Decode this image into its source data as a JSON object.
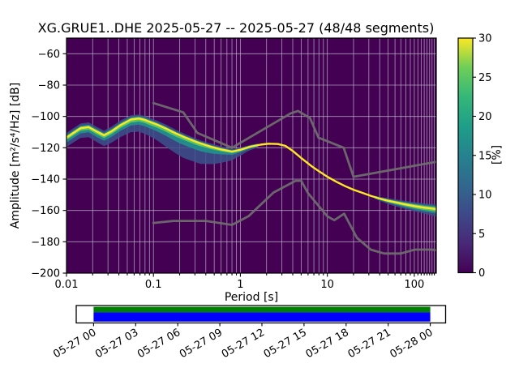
{
  "title": "XG.GRUE1..DHE   2025-05-27 -- 2025-05-27  (48/48 segments)",
  "axes": {
    "xlabel": "Period [s]",
    "ylabel": "Amplitude [m²/s⁴/Hz] [dB]",
    "x_major_ticks": [
      {
        "value": 0.01,
        "label": "0.01"
      },
      {
        "value": 0.1,
        "label": "0.1"
      },
      {
        "value": 1,
        "label": "1"
      },
      {
        "value": 10,
        "label": "10"
      },
      {
        "value": 100,
        "label": "100"
      }
    ],
    "y_ticks": [
      {
        "value": -60,
        "label": "−60"
      },
      {
        "value": -80,
        "label": "−80"
      },
      {
        "value": -100,
        "label": "−100"
      },
      {
        "value": -120,
        "label": "−120"
      },
      {
        "value": -140,
        "label": "−140"
      },
      {
        "value": -160,
        "label": "−160"
      },
      {
        "value": -180,
        "label": "−180"
      },
      {
        "value": -200,
        "label": "−200"
      }
    ]
  },
  "colorbar": {
    "label": "[%]",
    "ticks": [
      0,
      5,
      10,
      15,
      20,
      25,
      30
    ],
    "min": 0,
    "max": 30,
    "gradient": [
      [
        0,
        "#440154"
      ],
      [
        0.125,
        "#482878"
      ],
      [
        0.25,
        "#3e4989"
      ],
      [
        0.375,
        "#31688e"
      ],
      [
        0.5,
        "#26828e"
      ],
      [
        0.625,
        "#1f9e89"
      ],
      [
        0.75,
        "#35b779"
      ],
      [
        0.875,
        "#6ece58"
      ],
      [
        1,
        "#fde725"
      ]
    ]
  },
  "colors": {
    "background": "#440154",
    "grid": "#c8c8d2",
    "mode_line": "#fde725",
    "green": "#5ec962",
    "teal": "#21918c",
    "blue": "#3b528b",
    "noise_model": "#6f6f6f",
    "availability_green": "#008000",
    "availability_blue": "#0000ff"
  },
  "timeline": {
    "tick_labels": [
      "05-27 00",
      "05-27 03",
      "05-27 06",
      "05-27 09",
      "05-27 12",
      "05-27 15",
      "05-27 18",
      "05-27 21",
      "05-28 00"
    ]
  },
  "chart_data": {
    "type": "heatmap",
    "description": "Probabilistic power spectral density (PPSD) of station XG.GRUE1..DHE, 48/48 segments, with Peterson NHNM/NLNM reference noise model curves and day-long data coverage bar.",
    "title": "XG.GRUE1..DHE   2025-05-27 -- 2025-05-27  (48/48 segments)",
    "station_id": "XG.GRUE1..DHE",
    "date_range": "2025-05-27 -- 2025-05-27",
    "segments_used": "48/48",
    "xlabel": "Period [s]",
    "ylabel": "Amplitude [m²/s⁴/Hz] [dB]",
    "xscale": "log",
    "xlim": [
      0.01,
      179
    ],
    "ylim": [
      -200,
      -50
    ],
    "grid": true,
    "colorbar_label": "[%]",
    "colorbar_range": [
      0,
      30
    ],
    "mode_curve": [
      [
        0.01,
        -113.5
      ],
      [
        0.012,
        -110.5
      ],
      [
        0.0145,
        -107.5
      ],
      [
        0.018,
        -106.8
      ],
      [
        0.022,
        -109.5
      ],
      [
        0.027,
        -112
      ],
      [
        0.033,
        -109.5
      ],
      [
        0.042,
        -105.5
      ],
      [
        0.055,
        -102
      ],
      [
        0.068,
        -101.3
      ],
      [
        0.08,
        -102.3
      ],
      [
        0.09,
        -103.4
      ],
      [
        0.11,
        -105.2
      ],
      [
        0.14,
        -107.8
      ],
      [
        0.18,
        -110.8
      ],
      [
        0.24,
        -113.8
      ],
      [
        0.33,
        -116.8
      ],
      [
        0.45,
        -119.2
      ],
      [
        0.6,
        -121
      ],
      [
        0.8,
        -122.4
      ],
      [
        1.0,
        -121.3
      ],
      [
        1.3,
        -119.3
      ],
      [
        1.7,
        -118
      ],
      [
        2.1,
        -117.4
      ],
      [
        2.7,
        -117.6
      ],
      [
        3.3,
        -118.8
      ],
      [
        4,
        -122
      ],
      [
        5,
        -126.5
      ],
      [
        6.5,
        -131.5
      ],
      [
        8,
        -135
      ],
      [
        10,
        -138.5
      ],
      [
        12.5,
        -141.5
      ],
      [
        16,
        -144.5
      ],
      [
        20,
        -146.8
      ],
      [
        25,
        -148.7
      ],
      [
        32,
        -150.8
      ],
      [
        40,
        -152.4
      ],
      [
        50,
        -153.8
      ],
      [
        63,
        -155
      ],
      [
        80,
        -156.2
      ],
      [
        100,
        -157.2
      ],
      [
        130,
        -158.2
      ],
      [
        160,
        -158.8
      ],
      [
        179,
        -159.2
      ]
    ],
    "noise_models": {
      "nhnm": [
        [
          0.1,
          -91.5
        ],
        [
          0.22,
          -97.4
        ],
        [
          0.32,
          -110.5
        ],
        [
          0.8,
          -120
        ],
        [
          3.8,
          -98
        ],
        [
          4.6,
          -96.5
        ],
        [
          6.3,
          -101
        ],
        [
          7.9,
          -113.5
        ],
        [
          15.4,
          -120
        ],
        [
          20,
          -138.5
        ],
        [
          179,
          -129
        ]
      ],
      "nlnm": [
        [
          0.1,
          -168
        ],
        [
          0.17,
          -166.7
        ],
        [
          0.4,
          -166.7
        ],
        [
          0.8,
          -169.2
        ],
        [
          1.24,
          -163.7
        ],
        [
          2.4,
          -148.6
        ],
        [
          4.3,
          -141.1
        ],
        [
          5,
          -141.1
        ],
        [
          6,
          -149
        ],
        [
          10,
          -163.8
        ],
        [
          12,
          -166.2
        ],
        [
          15.6,
          -162.1
        ],
        [
          21.9,
          -177.5
        ],
        [
          31.6,
          -185
        ],
        [
          45,
          -187.5
        ],
        [
          70,
          -187.5
        ],
        [
          101,
          -185
        ],
        [
          154,
          -185
        ],
        [
          179,
          -185.3
        ]
      ]
    },
    "spread_bands": [
      {
        "name": "cloud-blue-left",
        "color": "#3b528b",
        "alpha": 0.85,
        "points": [
          [
            0.01,
            3,
            6
          ],
          [
            0.02,
            3,
            6.5
          ],
          [
            0.04,
            3,
            7.5
          ],
          [
            0.07,
            2.5,
            8.5
          ],
          [
            0.1,
            2.5,
            9.5
          ],
          [
            0.15,
            2.5,
            12
          ],
          [
            0.22,
            2.2,
            13.5
          ],
          [
            0.35,
            2,
            13
          ],
          [
            0.5,
            2,
            10.5
          ],
          [
            0.7,
            1.8,
            7
          ],
          [
            0.9,
            1.5,
            4.5
          ],
          [
            1.2,
            1.2,
            2.5
          ],
          [
            1.6,
            1,
            1.5
          ]
        ]
      },
      {
        "name": "cloud-teal-left",
        "color": "#21918c",
        "alpha": 0.9,
        "points": [
          [
            0.01,
            1.6,
            3.2
          ],
          [
            0.04,
            1.6,
            3.6
          ],
          [
            0.1,
            1.4,
            4.2
          ],
          [
            0.2,
            1.2,
            5.2
          ],
          [
            0.35,
            1.2,
            5
          ],
          [
            0.5,
            1,
            4
          ],
          [
            0.7,
            1,
            2.6
          ],
          [
            1,
            0.9,
            1.6
          ],
          [
            1.6,
            0.8,
            0.9
          ]
        ]
      },
      {
        "name": "cloud-green-left",
        "color": "#5ec962",
        "alpha": 0.95,
        "points": [
          [
            0.01,
            0.9,
            1.6
          ],
          [
            0.06,
            0.9,
            1.9
          ],
          [
            0.15,
            0.7,
            2.1
          ],
          [
            0.3,
            0.7,
            1.9
          ],
          [
            0.6,
            0.6,
            1.3
          ],
          [
            1,
            0.5,
            0.8
          ],
          [
            1.6,
            0.5,
            0.5
          ]
        ]
      },
      {
        "name": "tail-blue-right",
        "color": "#3b528b",
        "alpha": 0.8,
        "points": [
          [
            35,
            0.8,
            1
          ],
          [
            55,
            1.8,
            2.4
          ],
          [
            90,
            2.4,
            3.2
          ],
          [
            140,
            2.8,
            4
          ],
          [
            179,
            3.2,
            5
          ]
        ]
      },
      {
        "name": "tail-teal-right",
        "color": "#21918c",
        "alpha": 0.9,
        "points": [
          [
            35,
            0.7,
            0.8
          ],
          [
            60,
            1.2,
            1.6
          ],
          [
            100,
            1.6,
            2.2
          ],
          [
            179,
            2,
            2.8
          ]
        ]
      },
      {
        "name": "tail-green-right",
        "color": "#5ec962",
        "alpha": 0.95,
        "points": [
          [
            40,
            0.5,
            0.6
          ],
          [
            70,
            0.9,
            1.1
          ],
          [
            110,
            1.1,
            1.4
          ],
          [
            179,
            1.2,
            1.6
          ]
        ]
      }
    ],
    "timeline_coverage": {
      "tick_labels": [
        "05-27 00",
        "05-27 03",
        "05-27 06",
        "05-27 09",
        "05-27 12",
        "05-27 15",
        "05-27 18",
        "05-27 21",
        "05-28 00"
      ],
      "bars": [
        {
          "name": "data-availability",
          "color": "#008000",
          "start": "05-27 00",
          "end": "05-28 00"
        },
        {
          "name": "psd-coverage",
          "color": "#0000ff",
          "start": "05-27 00",
          "end": "05-28 00"
        }
      ]
    }
  }
}
